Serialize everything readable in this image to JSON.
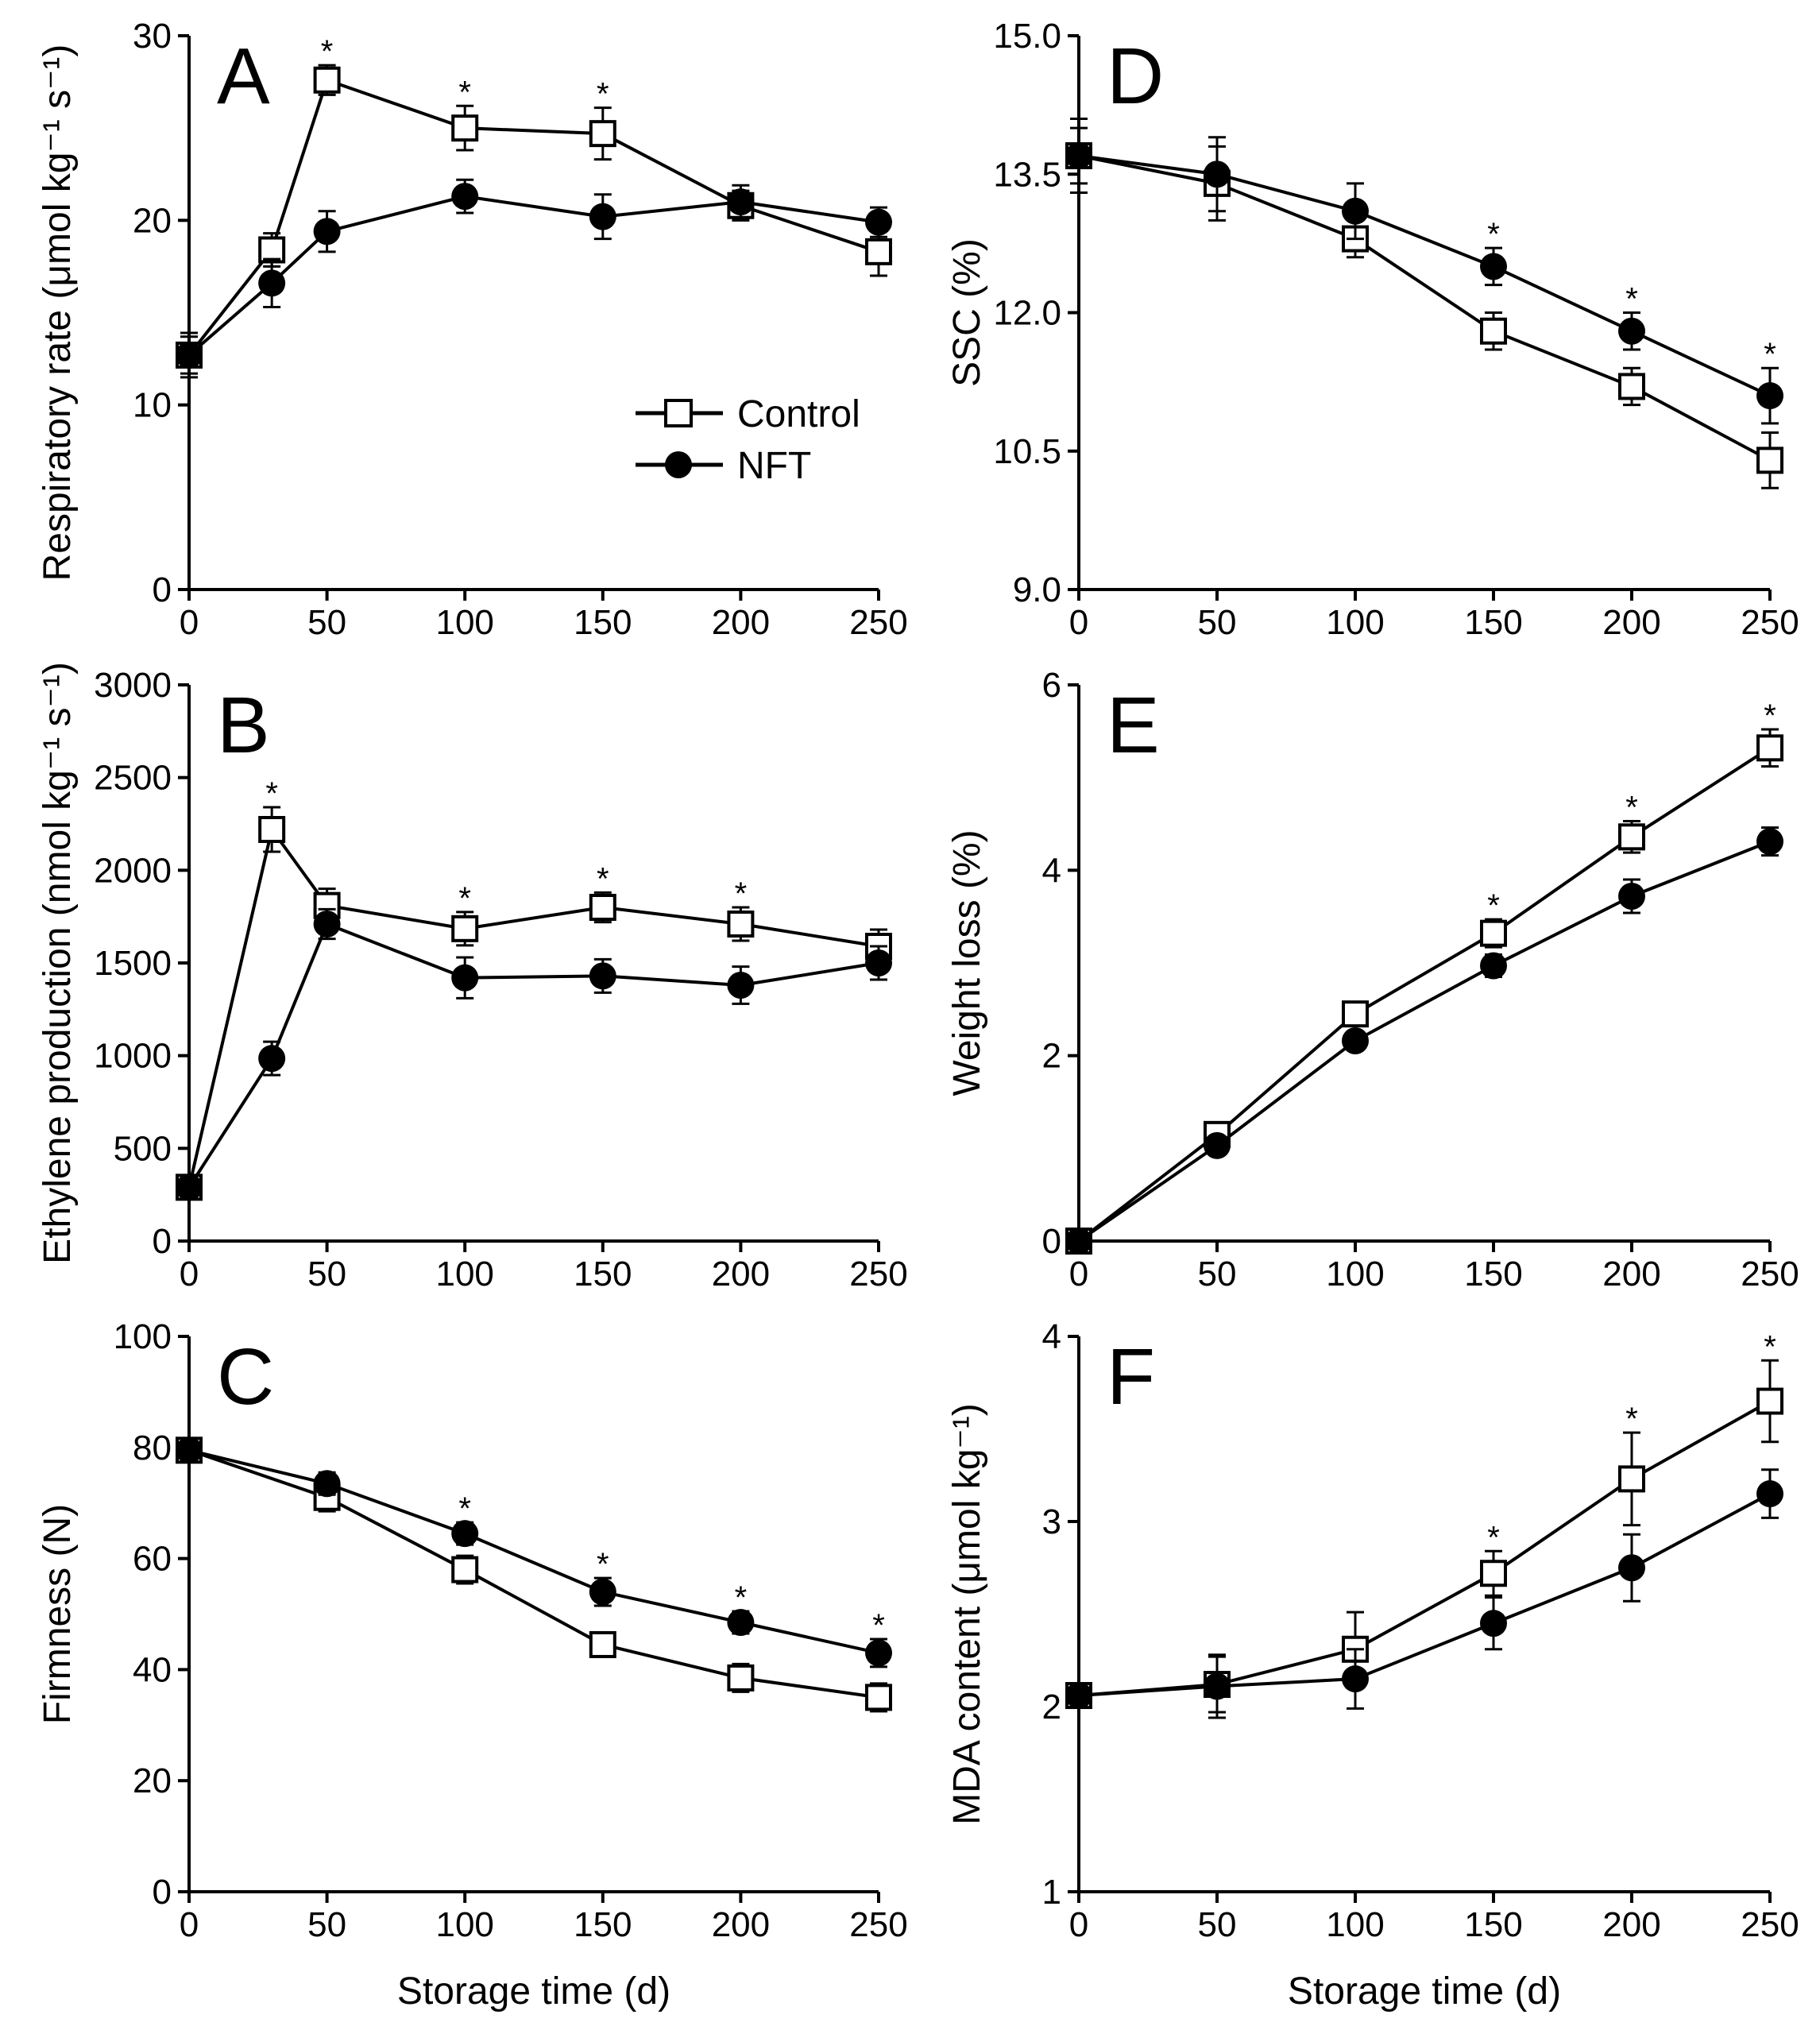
{
  "figure": {
    "x_axis_title": "Storage time (d)",
    "legend": [
      {
        "label": "Control",
        "marker": "open-square"
      },
      {
        "label": "NFT",
        "marker": "filled-circle"
      }
    ],
    "colors": {
      "ink": "#000000",
      "background": "#ffffff"
    }
  },
  "chart_data": [
    {
      "panel": "A",
      "type": "line",
      "ylabel": "Respiratory rate (μmol kg⁻¹ s⁻¹)",
      "xlim": [
        0,
        250
      ],
      "ylim": [
        0,
        30
      ],
      "xticks": [
        0,
        50,
        100,
        150,
        200,
        250
      ],
      "yticks": [
        0,
        10,
        20,
        30
      ],
      "xtick_labels": [
        "0",
        "50",
        "100",
        "150",
        "200",
        "250"
      ],
      "ytick_labels": [
        "0",
        "10",
        "20",
        "30"
      ],
      "series": [
        {
          "name": "Control",
          "x": [
            0,
            30,
            50,
            100,
            150,
            200,
            250
          ],
          "y": [
            12.7,
            18.4,
            27.6,
            25.0,
            24.7,
            20.8,
            18.3
          ],
          "err": [
            1.0,
            0.9,
            0.8,
            1.2,
            1.4,
            0.8,
            1.3
          ]
        },
        {
          "name": "NFT",
          "x": [
            0,
            30,
            50,
            100,
            150,
            200,
            250
          ],
          "y": [
            12.7,
            16.6,
            19.4,
            21.3,
            20.2,
            21.0,
            19.9
          ],
          "err": [
            1.2,
            1.3,
            1.1,
            0.9,
            1.2,
            0.9,
            0.8
          ]
        }
      ],
      "significance": [
        {
          "x": 50,
          "label": "*"
        },
        {
          "x": 100,
          "label": "*"
        },
        {
          "x": 150,
          "label": "*"
        }
      ]
    },
    {
      "panel": "B",
      "type": "line",
      "ylabel": "Ethylene production (nmol kg⁻¹ s⁻¹)",
      "xlim": [
        0,
        250
      ],
      "ylim": [
        0,
        3000
      ],
      "xticks": [
        0,
        50,
        100,
        150,
        200,
        250
      ],
      "yticks": [
        0,
        500,
        1000,
        1500,
        2000,
        2500,
        3000
      ],
      "xtick_labels": [
        "0",
        "50",
        "100",
        "150",
        "200",
        "250"
      ],
      "ytick_labels": [
        "0",
        "500",
        "1000",
        "1500",
        "2000",
        "2500",
        "3000"
      ],
      "series": [
        {
          "name": "Control",
          "x": [
            0,
            30,
            50,
            100,
            150,
            200,
            250
          ],
          "y": [
            290,
            2220,
            1810,
            1685,
            1800,
            1710,
            1590
          ],
          "err": [
            50,
            120,
            90,
            90,
            80,
            90,
            90
          ]
        },
        {
          "name": "NFT",
          "x": [
            0,
            30,
            50,
            100,
            150,
            200,
            250
          ],
          "y": [
            290,
            985,
            1710,
            1420,
            1430,
            1380,
            1500
          ],
          "err": [
            50,
            90,
            80,
            110,
            90,
            100,
            90
          ]
        }
      ],
      "significance": [
        {
          "x": 30,
          "label": "*"
        },
        {
          "x": 100,
          "label": "*"
        },
        {
          "x": 150,
          "label": "*"
        },
        {
          "x": 200,
          "label": "*"
        }
      ]
    },
    {
      "panel": "C",
      "type": "line",
      "ylabel": "Firmness (N)",
      "xlim": [
        0,
        250
      ],
      "ylim": [
        0,
        100
      ],
      "xticks": [
        0,
        50,
        100,
        150,
        200,
        250
      ],
      "yticks": [
        0,
        20,
        40,
        60,
        80,
        100
      ],
      "xtick_labels": [
        "0",
        "50",
        "100",
        "150",
        "200",
        "250"
      ],
      "ytick_labels": [
        "0",
        "20",
        "40",
        "60",
        "80",
        "100"
      ],
      "series": [
        {
          "name": "Control",
          "x": [
            0,
            50,
            100,
            150,
            200,
            250
          ],
          "y": [
            79.5,
            71.0,
            58.0,
            44.5,
            38.5,
            35.0
          ],
          "err": [
            1.5,
            2.5,
            2.5,
            2.0,
            2.5,
            2.5
          ]
        },
        {
          "name": "NFT",
          "x": [
            0,
            50,
            100,
            150,
            200,
            250
          ],
          "y": [
            79.5,
            73.5,
            64.5,
            54.0,
            48.5,
            43.0
          ],
          "err": [
            1.5,
            2.0,
            2.0,
            2.5,
            2.0,
            2.5
          ]
        }
      ],
      "significance": [
        {
          "x": 100,
          "label": "*"
        },
        {
          "x": 150,
          "label": "*"
        },
        {
          "x": 200,
          "label": "*"
        },
        {
          "x": 250,
          "label": "*"
        }
      ]
    },
    {
      "panel": "D",
      "type": "line",
      "ylabel": "SSC (%)",
      "xlim": [
        0,
        250
      ],
      "ylim": [
        9.0,
        15.0
      ],
      "xticks": [
        0,
        50,
        100,
        150,
        200,
        250
      ],
      "yticks": [
        9.0,
        10.5,
        12.0,
        13.5,
        15.0
      ],
      "xtick_labels": [
        "0",
        "50",
        "100",
        "150",
        "200",
        "250"
      ],
      "ytick_labels": [
        "9.0",
        "10.5",
        "12.0",
        "13.5",
        "15.0"
      ],
      "series": [
        {
          "name": "Control",
          "x": [
            0,
            50,
            100,
            150,
            200,
            250
          ],
          "y": [
            13.7,
            13.4,
            12.8,
            11.8,
            11.2,
            10.4
          ],
          "err": [
            0.3,
            0.4,
            0.2,
            0.2,
            0.2,
            0.3
          ]
        },
        {
          "name": "NFT",
          "x": [
            0,
            50,
            100,
            150,
            200,
            250
          ],
          "y": [
            13.7,
            13.5,
            13.1,
            12.5,
            11.8,
            11.1
          ],
          "err": [
            0.4,
            0.4,
            0.3,
            0.2,
            0.2,
            0.3
          ]
        }
      ],
      "significance": [
        {
          "x": 150,
          "label": "*"
        },
        {
          "x": 200,
          "label": "*"
        },
        {
          "x": 250,
          "label": "*"
        }
      ]
    },
    {
      "panel": "E",
      "type": "line",
      "ylabel": "Weight loss (%)",
      "xlim": [
        0,
        250
      ],
      "ylim": [
        0,
        6
      ],
      "xticks": [
        0,
        50,
        100,
        150,
        200,
        250
      ],
      "yticks": [
        0,
        2,
        4,
        6
      ],
      "xtick_labels": [
        "0",
        "50",
        "100",
        "150",
        "200",
        "250"
      ],
      "ytick_labels": [
        "0",
        "2",
        "4",
        "6"
      ],
      "series": [
        {
          "name": "Control",
          "x": [
            0,
            50,
            100,
            150,
            200,
            250
          ],
          "y": [
            0,
            1.15,
            2.45,
            3.32,
            4.36,
            5.32
          ],
          "err": [
            0.02,
            0.08,
            0.12,
            0.15,
            0.17,
            0.2
          ]
        },
        {
          "name": "NFT",
          "x": [
            0,
            50,
            100,
            150,
            200,
            250
          ],
          "y": [
            0,
            1.03,
            2.16,
            2.97,
            3.72,
            4.31
          ],
          "err": [
            0.02,
            0.07,
            0.1,
            0.12,
            0.18,
            0.15
          ]
        }
      ],
      "significance": [
        {
          "x": 150,
          "label": "*"
        },
        {
          "x": 200,
          "label": "*"
        },
        {
          "x": 250,
          "label": "*"
        }
      ]
    },
    {
      "panel": "F",
      "type": "line",
      "ylabel": "MDA content (μmol kg⁻¹)",
      "xlim": [
        0,
        250
      ],
      "ylim": [
        1,
        4
      ],
      "xticks": [
        0,
        50,
        100,
        150,
        200,
        250
      ],
      "yticks": [
        1,
        2,
        3,
        4
      ],
      "xtick_labels": [
        "0",
        "50",
        "100",
        "150",
        "200",
        "250"
      ],
      "ytick_labels": [
        "1",
        "2",
        "3",
        "4"
      ],
      "series": [
        {
          "name": "Control",
          "x": [
            0,
            50,
            100,
            150,
            200,
            250
          ],
          "y": [
            2.06,
            2.12,
            2.31,
            2.72,
            3.23,
            3.65
          ],
          "err": [
            0.05,
            0.15,
            0.2,
            0.12,
            0.25,
            0.22
          ]
        },
        {
          "name": "NFT",
          "x": [
            0,
            50,
            100,
            150,
            200,
            250
          ],
          "y": [
            2.06,
            2.11,
            2.15,
            2.45,
            2.75,
            3.15
          ],
          "err": [
            0.05,
            0.17,
            0.16,
            0.14,
            0.18,
            0.13
          ]
        }
      ],
      "significance": [
        {
          "x": 150,
          "label": "*"
        },
        {
          "x": 200,
          "label": "*"
        },
        {
          "x": 250,
          "label": "*"
        }
      ]
    }
  ]
}
